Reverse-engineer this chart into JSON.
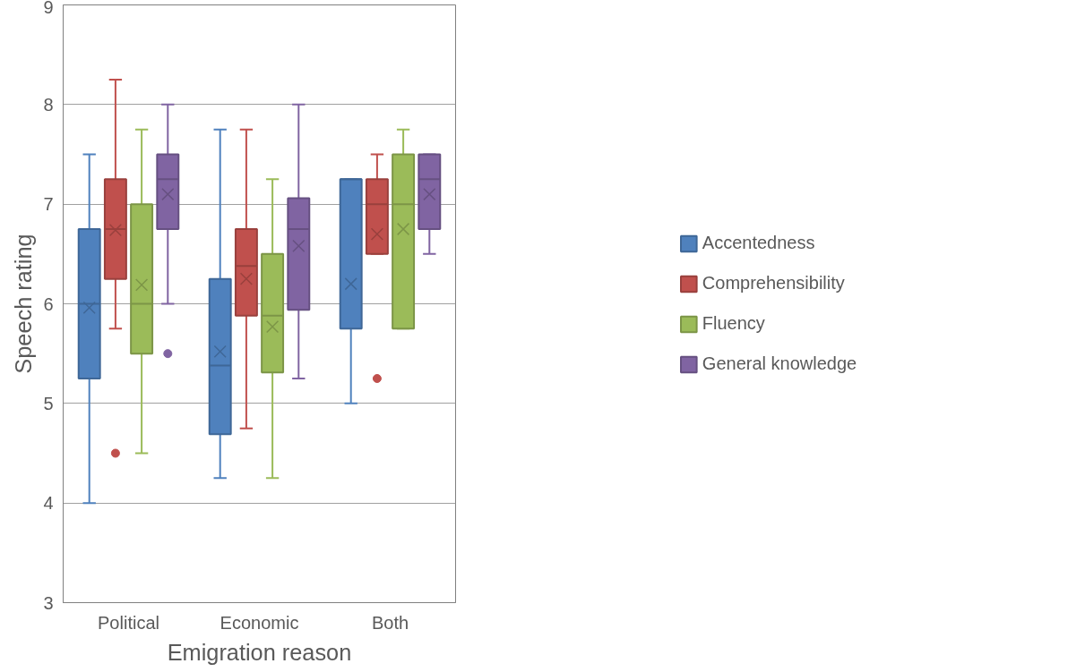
{
  "chart_data": {
    "type": "box",
    "xlabel": "Emigration reason",
    "ylabel": "Speech rating",
    "categories": [
      "Political",
      "Economic",
      "Both"
    ],
    "ylim": [
      3,
      9
    ],
    "yticks": [
      3,
      4,
      5,
      6,
      7,
      8,
      9
    ],
    "grid": "y",
    "legend": "right",
    "series": [
      {
        "name": "Accentedness",
        "color": "#4f81bd",
        "boxes": [
          {
            "low": 4,
            "q1": 5.25,
            "median": 6,
            "q3": 6.75,
            "high": 7.5,
            "mean": 5.96
          },
          {
            "low": 4.25,
            "q1": 4.69,
            "median": 5.38,
            "q3": 6.25,
            "high": 7.75,
            "mean": 5.52
          },
          {
            "low": 5,
            "q1": 5.75,
            "median": 7.25,
            "q3": 7.25,
            "high": 7.25,
            "mean": 6.2
          }
        ]
      },
      {
        "name": "Comprehensibility",
        "color": "#c0504d",
        "boxes": [
          {
            "low": 5.75,
            "q1": 6.25,
            "median": 6.75,
            "q3": 7.25,
            "high": 8.25,
            "mean": 6.74,
            "outliers": [
              4.5
            ]
          },
          {
            "low": 4.75,
            "q1": 5.88,
            "median": 6.38,
            "q3": 6.75,
            "high": 7.75,
            "mean": 6.25
          },
          {
            "low": 6.5,
            "q1": 6.5,
            "median": 7,
            "q3": 7.25,
            "high": 7.5,
            "mean": 6.7,
            "outliers": [
              5.25
            ]
          }
        ]
      },
      {
        "name": "Fluency",
        "color": "#9bbb59",
        "boxes": [
          {
            "low": 4.5,
            "q1": 5.5,
            "median": 6,
            "q3": 7,
            "high": 7.75,
            "mean": 6.19
          },
          {
            "low": 4.25,
            "q1": 5.31,
            "median": 5.88,
            "q3": 6.5,
            "high": 7.25,
            "mean": 5.77
          },
          {
            "low": 5.75,
            "q1": 5.75,
            "median": 7,
            "q3": 7.5,
            "high": 7.75,
            "mean": 6.75
          }
        ]
      },
      {
        "name": "General knowledge",
        "color": "#8064a2",
        "boxes": [
          {
            "low": 6,
            "q1": 6.75,
            "median": 7.25,
            "q3": 7.5,
            "high": 8,
            "mean": 7.1,
            "outliers": [
              5.5
            ]
          },
          {
            "low": 5.25,
            "q1": 5.94,
            "median": 6.75,
            "q3": 7.06,
            "high": 8,
            "mean": 6.58
          },
          {
            "low": 6.5,
            "q1": 6.75,
            "median": 7.25,
            "q3": 7.5,
            "high": 7.5,
            "mean": 7.1
          }
        ]
      }
    ]
  }
}
